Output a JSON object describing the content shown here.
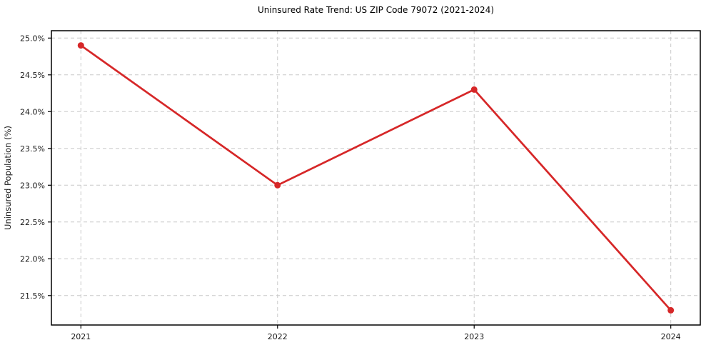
{
  "chart_data": {
    "type": "line",
    "title": "Uninsured Rate Trend: US ZIP Code 79072 (2021-2024)",
    "xlabel": "",
    "ylabel": "Uninsured Population (%)",
    "x": [
      2021,
      2022,
      2023,
      2024
    ],
    "x_tick_labels": [
      "2021",
      "2022",
      "2023",
      "2024"
    ],
    "series": [
      {
        "name": "uninsured-rate",
        "values": [
          24.9,
          23.0,
          24.3,
          21.3
        ],
        "color": "#d62728",
        "marker": "circle",
        "line_width": 2.7,
        "marker_radius": 4.5
      }
    ],
    "y_ticks": [
      21.5,
      22.0,
      22.5,
      23.0,
      23.5,
      24.0,
      24.5,
      25.0
    ],
    "y_tick_labels": [
      "21.5%",
      "22.0%",
      "22.5%",
      "23.0%",
      "23.5%",
      "24.0%",
      "24.5%",
      "25.0%"
    ],
    "ylim": [
      21.1,
      25.1
    ],
    "xlim": [
      2020.85,
      2024.15
    ],
    "grid": true,
    "grid_style": "dashed",
    "grid_color": "#c8c8c8",
    "spine_color": "#000000",
    "tick_color": "#1a1a1a",
    "background": "#ffffff",
    "legend": null
  }
}
